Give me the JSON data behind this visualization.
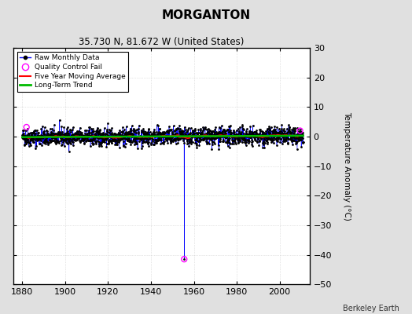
{
  "title": "MORGANTON",
  "subtitle": "35.730 N, 81.672 W (United States)",
  "ylabel": "Temperature Anomaly (°C)",
  "attribution": "Berkeley Earth",
  "xlim": [
    1876,
    2014
  ],
  "ylim": [
    -50,
    30
  ],
  "yticks": [
    -50,
    -40,
    -30,
    -20,
    -10,
    0,
    10,
    20,
    30
  ],
  "xticks": [
    1880,
    1900,
    1920,
    1940,
    1960,
    1980,
    2000
  ],
  "x_start": 1880,
  "x_end": 2011,
  "n_months": 1574,
  "spike_x": 1955.5,
  "spike_y": -41.5,
  "qc_fail_points": [
    [
      1882.0,
      3.2
    ],
    [
      1955.5,
      -41.5
    ],
    [
      2009.5,
      2.0
    ]
  ],
  "noise_std": 1.5,
  "background_color": "#e0e0e0",
  "plot_bg_color": "#ffffff",
  "raw_line_color": "#0000ff",
  "raw_marker_color": "#000000",
  "moving_avg_color": "#ff0000",
  "trend_color": "#00bb00",
  "qc_fail_color": "#ff00ff",
  "grid_color": "#cccccc",
  "seed": 42
}
